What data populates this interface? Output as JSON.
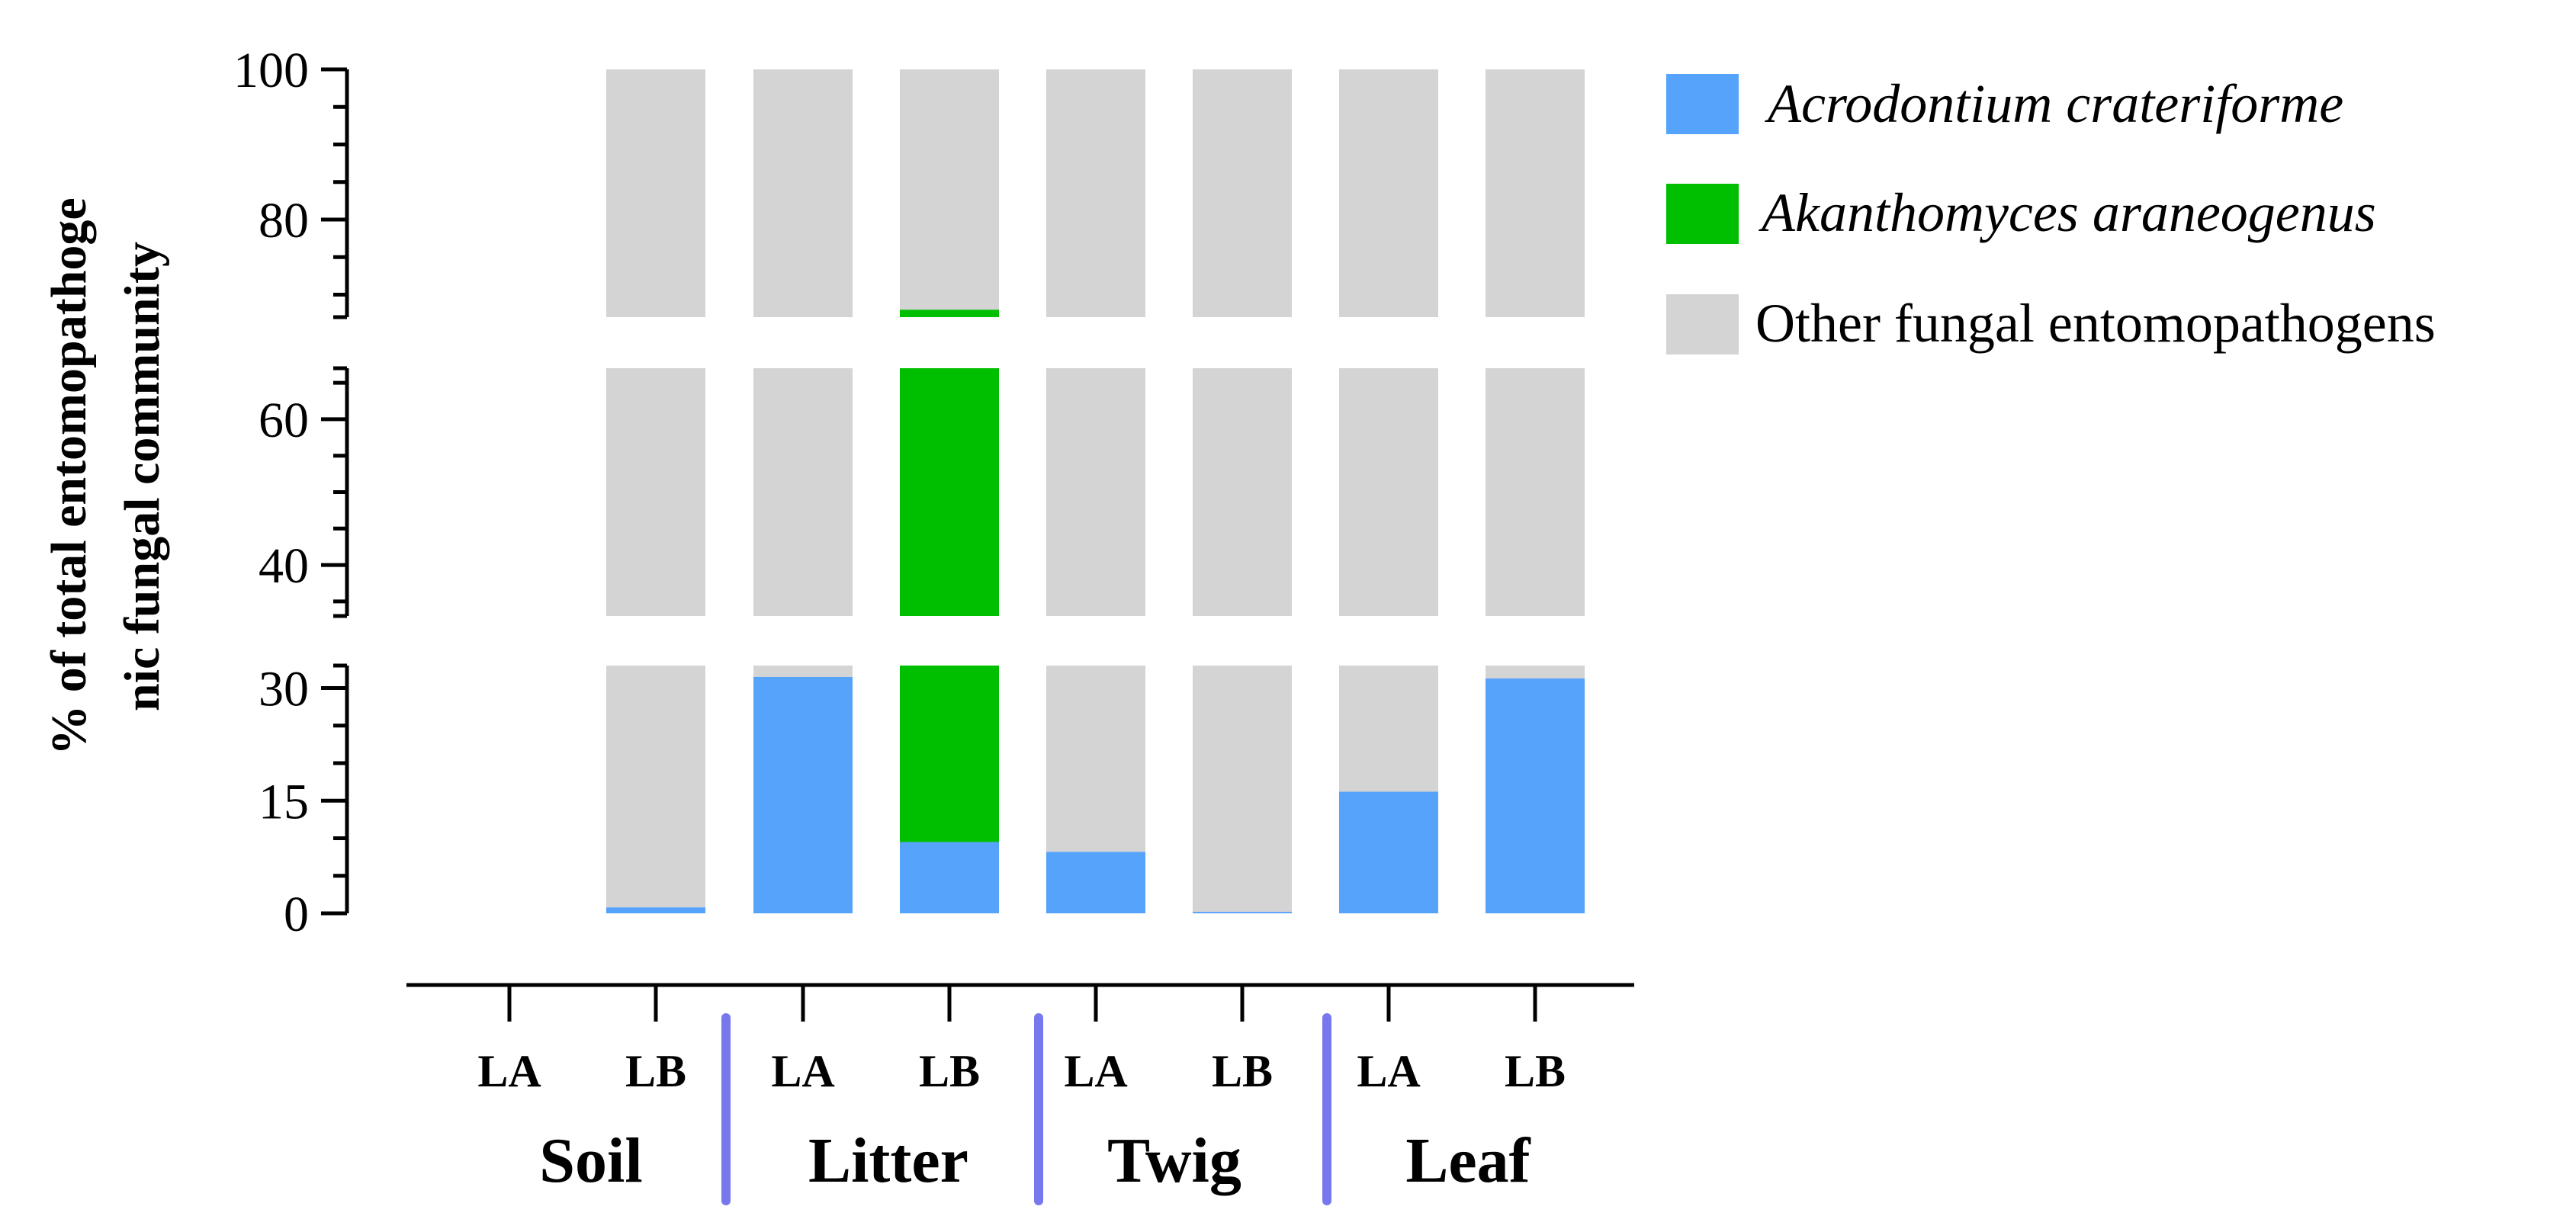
{
  "chart_data": {
    "type": "bar",
    "stacked": true,
    "broken_y_axis": true,
    "y_segments": [
      {
        "range": [
          0,
          33
        ],
        "ticks": [
          0,
          15,
          30
        ]
      },
      {
        "range": [
          33,
          67
        ],
        "ticks": [
          40,
          60
        ]
      },
      {
        "range": [
          67,
          100
        ],
        "ticks": [
          80,
          100
        ]
      }
    ],
    "ylim": [
      0,
      100
    ],
    "ylabel_line1": "% of total entomopathoge",
    "ylabel_line2": "nic fungal community",
    "groups": [
      "Soil",
      "Litter",
      "Twig",
      "Leaf"
    ],
    "categories": [
      "LA",
      "LB",
      "LA",
      "LB",
      "LA",
      "LB",
      "LA",
      "LB"
    ],
    "category_groups": [
      "Soil",
      "Soil",
      "Litter",
      "Litter",
      "Twig",
      "Twig",
      "Leaf",
      "Leaf"
    ],
    "bar_present": [
      false,
      true,
      true,
      true,
      true,
      true,
      true,
      true
    ],
    "series": [
      {
        "name": "Acrodontium crateriforme",
        "color": "#56a3fb",
        "values": [
          0,
          0.8,
          31.5,
          9.5,
          8.2,
          0.2,
          16.2,
          31.3
        ]
      },
      {
        "name": "Akanthomyces araneogenus",
        "color": "#00bf00",
        "values": [
          0,
          0,
          0,
          58.5,
          0,
          0,
          0,
          0
        ]
      },
      {
        "name": "Other fungal entomopathogens",
        "color": "#d4d4d4",
        "values": [
          0,
          99.2,
          68.5,
          32.0,
          91.8,
          99.8,
          83.8,
          68.7
        ]
      }
    ],
    "legend_position": "top-right",
    "grid": false,
    "group_separator_color": "#7777ee"
  }
}
